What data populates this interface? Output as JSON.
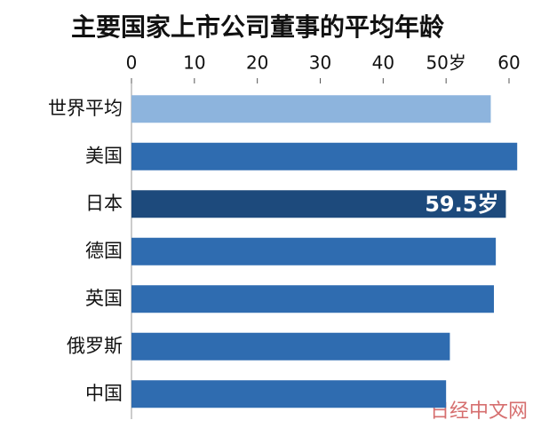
{
  "chart_data": {
    "type": "bar",
    "orientation": "horizontal",
    "title": "主要国家上市公司董事的平均年龄",
    "categories": [
      "世界平均",
      "美国",
      "日本",
      "德国",
      "英国",
      "俄罗斯",
      "中国"
    ],
    "values": [
      57.1,
      61.3,
      59.5,
      57.9,
      57.6,
      50.6,
      50.0
    ],
    "value_labels": [
      null,
      null,
      "59.5岁",
      null,
      null,
      null,
      null
    ],
    "colors": [
      "#8db4dd",
      "#2f6cb0",
      "#1d4a7c",
      "#2f6cb0",
      "#2f6cb0",
      "#2f6cb0",
      "#2f6cb0"
    ],
    "xlim": [
      0,
      60
    ],
    "xticks": [
      0,
      10,
      20,
      30,
      40,
      {
        "value": 50,
        "label": "50岁"
      },
      60
    ],
    "grid": false,
    "watermark": "日经中文网"
  }
}
